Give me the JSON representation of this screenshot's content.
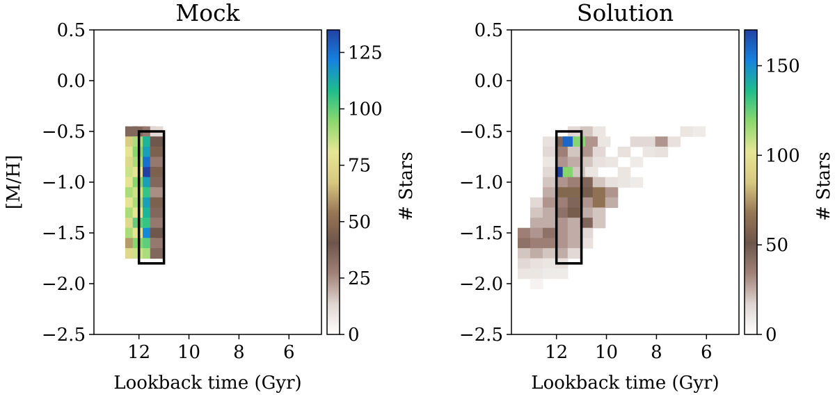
{
  "chart_data": [
    {
      "type": "heatmap",
      "title": "Mock",
      "xlabel": "Lookback time (Gyr)",
      "ylabel": "[M/H]",
      "xlim": [
        13.8,
        4.7
      ],
      "ylim": [
        -2.5,
        0.5
      ],
      "xticks": [
        "12",
        "10",
        "8",
        "6"
      ],
      "xtick_values": [
        12,
        10,
        8,
        6
      ],
      "yticks": [
        "0.5",
        "0.0",
        "−0.5",
        "−1.0",
        "−1.5",
        "−2.0",
        "−2.5"
      ],
      "ytick_values": [
        0.5,
        0.0,
        -0.5,
        -1.0,
        -1.5,
        -2.0,
        -2.5
      ],
      "colorbar_label": "# Stars",
      "colorbar_ticks": [
        "0",
        "25",
        "50",
        "75",
        "100",
        "125"
      ],
      "colorbar_tick_values": [
        0,
        25,
        50,
        75,
        100,
        125
      ],
      "vmax": 135,
      "bin_width_gyr": 0.5,
      "bin_height_dex": 0.1,
      "box": {
        "x0": 12.0,
        "x1": 11.0,
        "y0": -1.8,
        "y1": -0.5
      },
      "cells": [
        [
          12.3,
          -0.5,
          35
        ],
        [
          12.0,
          -0.5,
          35
        ],
        [
          11.6,
          -0.5,
          30
        ],
        [
          11.3,
          -0.5,
          12
        ],
        [
          12.3,
          -0.6,
          70
        ],
        [
          12.0,
          -0.6,
          90
        ],
        [
          11.6,
          -0.6,
          110
        ],
        [
          11.3,
          -0.6,
          40
        ],
        [
          12.3,
          -0.7,
          80
        ],
        [
          12.0,
          -0.7,
          95
        ],
        [
          11.6,
          -0.7,
          115
        ],
        [
          11.3,
          -0.7,
          45
        ],
        [
          12.3,
          -0.8,
          75
        ],
        [
          12.0,
          -0.8,
          90
        ],
        [
          11.6,
          -0.8,
          125
        ],
        [
          11.3,
          -0.8,
          30
        ],
        [
          12.3,
          -0.9,
          85
        ],
        [
          12.0,
          -0.9,
          80
        ],
        [
          11.6,
          -0.9,
          135
        ],
        [
          11.3,
          -0.9,
          45
        ],
        [
          12.3,
          -1.0,
          80
        ],
        [
          12.0,
          -1.0,
          95
        ],
        [
          11.6,
          -1.0,
          115
        ],
        [
          11.3,
          -1.0,
          35
        ],
        [
          12.3,
          -1.1,
          90
        ],
        [
          12.0,
          -1.1,
          85
        ],
        [
          11.6,
          -1.1,
          105
        ],
        [
          11.3,
          -1.1,
          25
        ],
        [
          12.3,
          -1.2,
          80
        ],
        [
          12.0,
          -1.2,
          90
        ],
        [
          11.6,
          -1.2,
          115
        ],
        [
          11.3,
          -1.2,
          45
        ],
        [
          12.3,
          -1.3,
          90
        ],
        [
          12.0,
          -1.3,
          80
        ],
        [
          11.6,
          -1.3,
          110
        ],
        [
          11.3,
          -1.3,
          35
        ],
        [
          12.3,
          -1.4,
          75
        ],
        [
          12.0,
          -1.4,
          100
        ],
        [
          11.6,
          -1.4,
          105
        ],
        [
          11.3,
          -1.4,
          30
        ],
        [
          12.3,
          -1.5,
          90
        ],
        [
          12.0,
          -1.5,
          80
        ],
        [
          11.6,
          -1.5,
          120
        ],
        [
          11.3,
          -1.5,
          40
        ],
        [
          12.3,
          -1.6,
          60
        ],
        [
          12.0,
          -1.6,
          95
        ],
        [
          11.6,
          -1.6,
          100
        ],
        [
          11.3,
          -1.6,
          30
        ],
        [
          12.3,
          -1.7,
          75
        ],
        [
          12.0,
          -1.7,
          85
        ],
        [
          11.6,
          -1.7,
          90
        ],
        [
          11.3,
          -1.7,
          35
        ]
      ]
    },
    {
      "type": "heatmap",
      "title": "Solution",
      "xlabel": "Lookback time (Gyr)",
      "ylabel": "",
      "xlim": [
        13.8,
        4.7
      ],
      "ylim": [
        -2.5,
        0.5
      ],
      "xticks": [
        "12",
        "10",
        "8",
        "6"
      ],
      "xtick_values": [
        12,
        10,
        8,
        6
      ],
      "yticks": [
        "0.5",
        "0.0",
        "−0.5",
        "−1.0",
        "−1.5",
        "−2.0",
        "−2.5"
      ],
      "ytick_values": [
        0.5,
        0.0,
        -0.5,
        -1.0,
        -1.5,
        -2.0,
        -2.5
      ],
      "colorbar_label": "# Stars",
      "colorbar_ticks": [
        "0",
        "50",
        "100",
        "150"
      ],
      "colorbar_tick_values": [
        0,
        50,
        100,
        150
      ],
      "vmax": 170,
      "bin_width_gyr": 0.5,
      "bin_height_dex": 0.1,
      "box": {
        "x0": 12.0,
        "x1": 11.0,
        "y0": -1.8,
        "y1": -0.5
      },
      "cells": [
        [
          11.3,
          -0.5,
          15
        ],
        [
          10.8,
          -0.5,
          20
        ],
        [
          10.3,
          -0.5,
          10
        ],
        [
          12.3,
          -0.6,
          12
        ],
        [
          11.8,
          -0.6,
          45
        ],
        [
          11.5,
          -0.6,
          160
        ],
        [
          11.1,
          -0.6,
          120
        ],
        [
          10.6,
          -0.6,
          30
        ],
        [
          10.1,
          -0.6,
          10
        ],
        [
          12.3,
          -0.7,
          15
        ],
        [
          11.8,
          -0.7,
          35
        ],
        [
          11.3,
          -0.7,
          20
        ],
        [
          10.8,
          -0.7,
          30
        ],
        [
          10.3,
          -0.7,
          15
        ],
        [
          12.3,
          -0.8,
          10
        ],
        [
          11.8,
          -0.8,
          30
        ],
        [
          11.3,
          -0.8,
          25
        ],
        [
          10.8,
          -0.8,
          20
        ],
        [
          10.3,
          -0.8,
          12
        ],
        [
          12.3,
          -0.9,
          15
        ],
        [
          11.8,
          -0.9,
          170
        ],
        [
          11.5,
          -0.9,
          120
        ],
        [
          11.1,
          -0.9,
          20
        ],
        [
          10.6,
          -0.9,
          10
        ],
        [
          12.3,
          -1.0,
          20
        ],
        [
          11.8,
          -1.0,
          30
        ],
        [
          11.3,
          -1.0,
          35
        ],
        [
          10.8,
          -1.0,
          45
        ],
        [
          10.3,
          -1.0,
          20
        ],
        [
          9.8,
          -1.0,
          12
        ],
        [
          12.3,
          -1.1,
          25
        ],
        [
          11.8,
          -1.1,
          60
        ],
        [
          11.3,
          -1.1,
          60
        ],
        [
          10.8,
          -1.1,
          55
        ],
        [
          10.3,
          -1.1,
          65
        ],
        [
          9.8,
          -1.1,
          30
        ],
        [
          12.8,
          -1.2,
          15
        ],
        [
          12.3,
          -1.2,
          30
        ],
        [
          11.8,
          -1.2,
          35
        ],
        [
          11.3,
          -1.2,
          45
        ],
        [
          10.8,
          -1.2,
          30
        ],
        [
          10.3,
          -1.2,
          65
        ],
        [
          9.8,
          -1.2,
          25
        ],
        [
          12.8,
          -1.3,
          20
        ],
        [
          12.3,
          -1.3,
          25
        ],
        [
          11.8,
          -1.3,
          40
        ],
        [
          11.3,
          -1.3,
          55
        ],
        [
          10.8,
          -1.3,
          25
        ],
        [
          10.3,
          -1.3,
          20
        ],
        [
          12.8,
          -1.4,
          25
        ],
        [
          12.3,
          -1.4,
          25
        ],
        [
          11.8,
          -1.4,
          30
        ],
        [
          11.3,
          -1.4,
          25
        ],
        [
          10.8,
          -1.4,
          45
        ],
        [
          10.3,
          -1.4,
          20
        ],
        [
          13.3,
          -1.5,
          35
        ],
        [
          12.8,
          -1.5,
          30
        ],
        [
          12.3,
          -1.5,
          40
        ],
        [
          11.8,
          -1.5,
          30
        ],
        [
          11.3,
          -1.5,
          25
        ],
        [
          10.8,
          -1.5,
          15
        ],
        [
          13.3,
          -1.6,
          40
        ],
        [
          12.8,
          -1.6,
          35
        ],
        [
          12.3,
          -1.6,
          35
        ],
        [
          11.8,
          -1.6,
          30
        ],
        [
          11.3,
          -1.6,
          25
        ],
        [
          10.8,
          -1.6,
          12
        ],
        [
          13.3,
          -1.7,
          20
        ],
        [
          12.8,
          -1.7,
          25
        ],
        [
          12.3,
          -1.7,
          20
        ],
        [
          11.8,
          -1.7,
          25
        ],
        [
          11.3,
          -1.7,
          15
        ],
        [
          13.3,
          -1.8,
          15
        ],
        [
          12.8,
          -1.8,
          12
        ],
        [
          12.3,
          -1.8,
          10
        ],
        [
          11.8,
          -1.8,
          12
        ],
        [
          13.3,
          -1.9,
          10
        ],
        [
          12.8,
          -1.9,
          10
        ],
        [
          12.3,
          -1.9,
          8
        ],
        [
          11.8,
          -1.9,
          8
        ],
        [
          12.8,
          -2.0,
          5
        ],
        [
          9.8,
          -0.8,
          10
        ],
        [
          9.3,
          -0.7,
          12
        ],
        [
          8.8,
          -0.6,
          15
        ],
        [
          8.3,
          -0.6,
          15
        ],
        [
          7.8,
          -0.6,
          30
        ],
        [
          7.3,
          -0.6,
          12
        ],
        [
          6.8,
          -0.5,
          10
        ],
        [
          6.3,
          -0.5,
          8
        ],
        [
          9.3,
          -0.9,
          10
        ],
        [
          8.8,
          -0.8,
          8
        ],
        [
          8.3,
          -0.7,
          10
        ],
        [
          7.8,
          -0.7,
          12
        ],
        [
          9.3,
          -1.0,
          10
        ],
        [
          8.8,
          -1.0,
          8
        ]
      ]
    }
  ]
}
